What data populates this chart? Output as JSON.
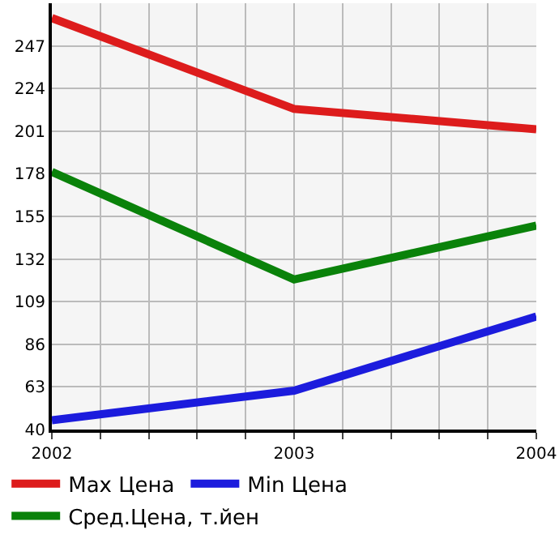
{
  "chart_data": {
    "type": "line",
    "x": [
      2002,
      2003,
      2004
    ],
    "series": [
      {
        "name": "Max Цена",
        "color": "#dd1c1c",
        "values": [
          262,
          213,
          202
        ]
      },
      {
        "name": "Min Цена",
        "color": "#1c1cdd",
        "values": [
          45,
          61,
          101
        ]
      },
      {
        "name": "Сред.Цена, т.йен",
        "color": "#0a820a",
        "values": [
          179,
          121,
          150
        ]
      }
    ],
    "xlim": [
      2002,
      2004
    ],
    "xticks": [
      2002,
      {
        "value": 2002.2,
        "label": null
      },
      {
        "value": 2002.4,
        "label": null
      },
      {
        "value": 2002.6,
        "label": null
      },
      {
        "value": 2002.8,
        "label": null
      },
      2003,
      {
        "value": 2003.2,
        "label": null
      },
      {
        "value": 2003.4,
        "label": null
      },
      {
        "value": 2003.6,
        "label": null
      },
      {
        "value": 2003.8,
        "label": null
      },
      2004
    ],
    "ylim": [
      40,
      270
    ],
    "yticks": [
      40,
      63,
      86,
      109,
      132,
      155,
      178,
      201,
      224,
      247
    ],
    "grid": true,
    "legend": "bottom",
    "marker": "none",
    "line_style": "solid"
  }
}
